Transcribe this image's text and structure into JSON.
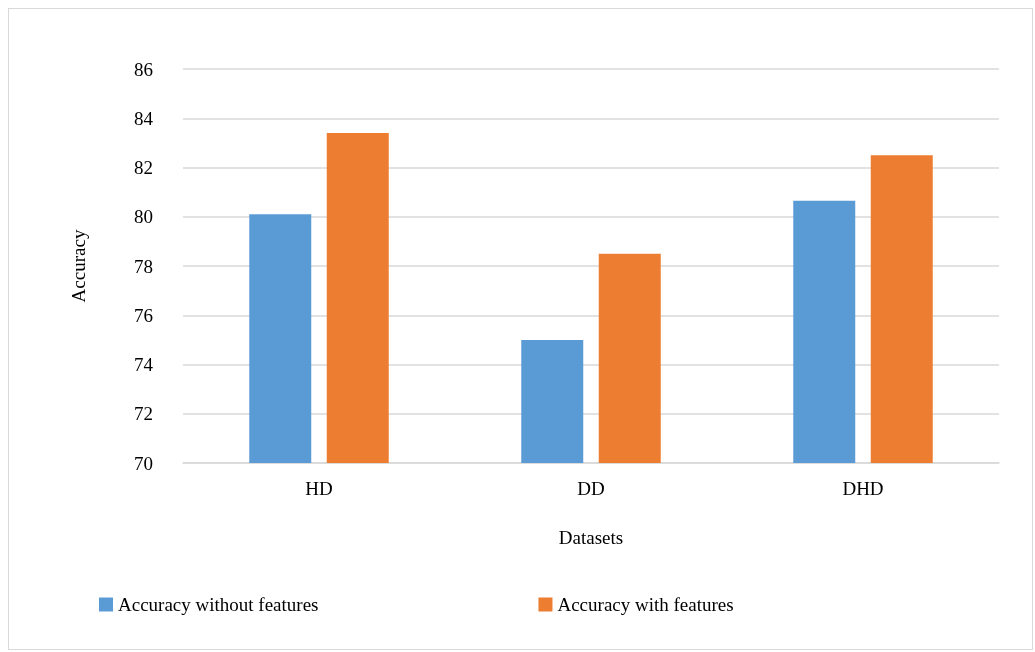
{
  "chart_data": {
    "type": "bar",
    "xlabel": "Datasets",
    "ylabel": "Accuracy",
    "categories": [
      "HD",
      "DD",
      "DHD"
    ],
    "series": [
      {
        "name": "Accuracy without features",
        "color": "#5b9bd5",
        "values": [
          80.1,
          75.0,
          80.65
        ]
      },
      {
        "name": "Accuracy with features",
        "color": "#ed7d31",
        "values": [
          83.4,
          78.5,
          82.5
        ]
      }
    ],
    "ylim": [
      70,
      86
    ],
    "yticks": [
      70,
      72,
      74,
      76,
      78,
      80,
      82,
      84,
      86
    ],
    "grid": "y",
    "legend": "bottom"
  }
}
